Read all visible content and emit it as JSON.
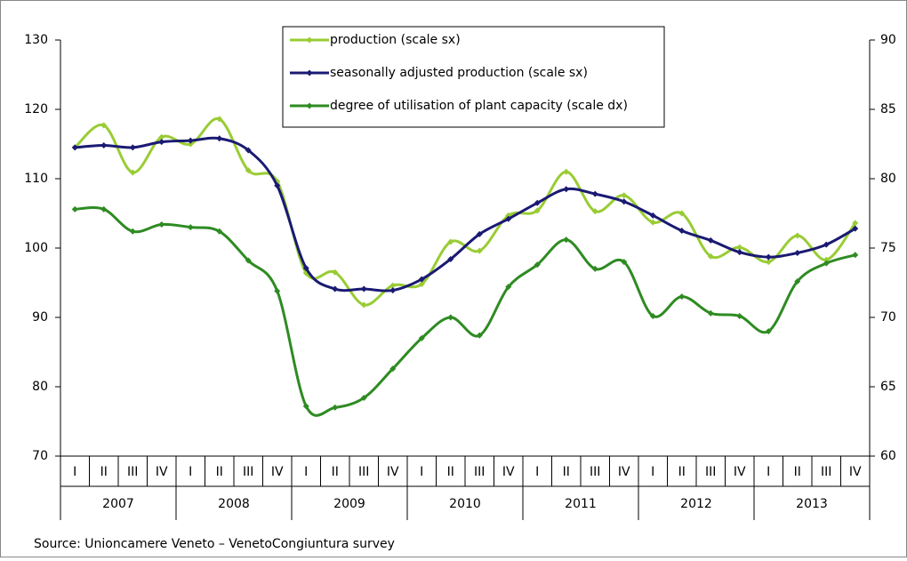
{
  "chart_data": {
    "type": "line",
    "categories": [
      "I",
      "II",
      "III",
      "IV",
      "I",
      "II",
      "III",
      "IV",
      "I",
      "II",
      "III",
      "IV",
      "I",
      "II",
      "III",
      "IV",
      "I",
      "II",
      "III",
      "IV",
      "I",
      "II",
      "III",
      "IV",
      "I",
      "II",
      "III",
      "IV"
    ],
    "years": [
      "2007",
      "2008",
      "2009",
      "2010",
      "2011",
      "2012",
      "2013"
    ],
    "series": [
      {
        "name": "production (scale sx)",
        "color": "#99cc33",
        "values": [
          114.5,
          117.7,
          110.9,
          116.0,
          115.0,
          118.6,
          111.2,
          109.6,
          96.4,
          96.5,
          91.8,
          94.6,
          94.8,
          100.9,
          99.6,
          104.7,
          105.4,
          111.0,
          105.3,
          107.6,
          103.7,
          105.0,
          98.8,
          100.1,
          98.0,
          101.8,
          98.3,
          103.6
        ]
      },
      {
        "name": "seasonally adjusted production (scale sx)",
        "color": "#1a1a73",
        "values": [
          114.5,
          114.8,
          114.5,
          115.3,
          115.5,
          115.8,
          114.1,
          109.0,
          97.1,
          94.1,
          94.1,
          93.9,
          95.5,
          98.4,
          102.0,
          104.2,
          106.5,
          108.5,
          107.8,
          106.7,
          104.7,
          102.5,
          101.1,
          99.4,
          98.7,
          99.3,
          100.5,
          102.8
        ]
      },
      {
        "name": "degree of utilisation of plant capacity (scale dx)",
        "color": "#2e8b22",
        "axis": "y2",
        "values": [
          77.8,
          77.8,
          76.2,
          76.7,
          76.5,
          76.2,
          74.1,
          71.9,
          63.6,
          63.5,
          64.2,
          66.3,
          68.5,
          70.0,
          68.7,
          72.2,
          73.8,
          75.6,
          73.5,
          74.0,
          70.1,
          71.5,
          70.3,
          70.1,
          69.0,
          72.6,
          73.9,
          74.5
        ]
      }
    ],
    "ylim": [
      70,
      130
    ],
    "yticks": [
      70,
      80,
      90,
      100,
      110,
      120,
      130
    ],
    "y2lim": [
      60,
      90
    ],
    "y2ticks": [
      60,
      65,
      70,
      75,
      80,
      85,
      90
    ],
    "source": "Source: Unioncamere Veneto – VenetoCongiuntura survey"
  }
}
